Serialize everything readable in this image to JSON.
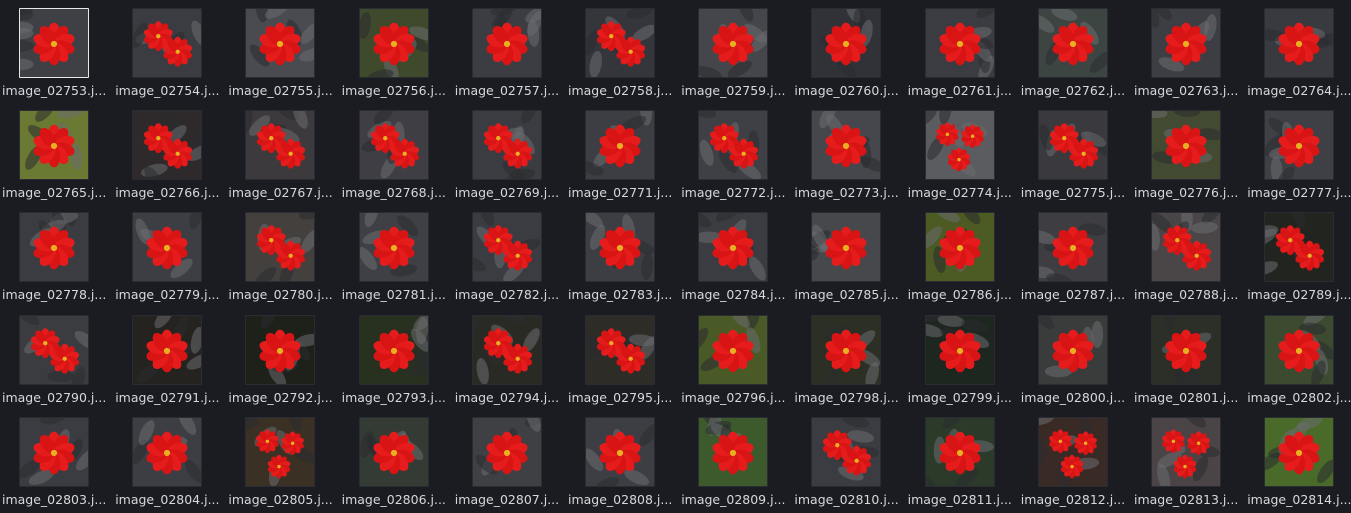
{
  "window": {
    "background": "#1a1c22",
    "selection_border": "#e8e8e8"
  },
  "files": [
    {
      "name": "image_02753.j...",
      "bg": "#3e4046",
      "flowers": 1,
      "selected": true
    },
    {
      "name": "image_02754.j...",
      "bg": "#3a3c42",
      "flowers": 2,
      "selected": false
    },
    {
      "name": "image_02755.j...",
      "bg": "#4a4b50",
      "flowers": 1,
      "selected": false
    },
    {
      "name": "image_02756.j...",
      "bg": "#3f4a2c",
      "flowers": 1,
      "selected": false
    },
    {
      "name": "image_02757.j...",
      "bg": "#3b3d43",
      "flowers": 1,
      "selected": false
    },
    {
      "name": "image_02758.j...",
      "bg": "#34363c",
      "flowers": 2,
      "selected": false
    },
    {
      "name": "image_02759.j...",
      "bg": "#44464b",
      "flowers": 1,
      "selected": false
    },
    {
      "name": "image_02760.j...",
      "bg": "#303238",
      "flowers": 1,
      "selected": false
    },
    {
      "name": "image_02761.j...",
      "bg": "#3a3c42",
      "flowers": 1,
      "selected": false
    },
    {
      "name": "image_02762.j...",
      "bg": "#3d4543",
      "flowers": 1,
      "selected": false
    },
    {
      "name": "image_02763.j...",
      "bg": "#3c3e44",
      "flowers": 1,
      "selected": false
    },
    {
      "name": "image_02764.j...",
      "bg": "#383a40",
      "flowers": 1,
      "selected": false
    },
    {
      "name": "image_02765.j...",
      "bg": "#6b7a32",
      "flowers": 1,
      "selected": false
    },
    {
      "name": "image_02766.j...",
      "bg": "#2e2a2c",
      "flowers": 2,
      "selected": false
    },
    {
      "name": "image_02767.j...",
      "bg": "#3c3a3c",
      "flowers": 2,
      "selected": false
    },
    {
      "name": "image_02768.j...",
      "bg": "#3e3e44",
      "flowers": 2,
      "selected": false
    },
    {
      "name": "image_02769.j...",
      "bg": "#3a3c42",
      "flowers": 2,
      "selected": false
    },
    {
      "name": "image_02771.j...",
      "bg": "#3c3e44",
      "flowers": 1,
      "selected": false
    },
    {
      "name": "image_02772.j...",
      "bg": "#3e4046",
      "flowers": 2,
      "selected": false
    },
    {
      "name": "image_02773.j...",
      "bg": "#45474c",
      "flowers": 1,
      "selected": false
    },
    {
      "name": "image_02774.j...",
      "bg": "#5a5c60",
      "flowers": 3,
      "selected": false
    },
    {
      "name": "image_02775.j...",
      "bg": "#3a3a3e",
      "flowers": 2,
      "selected": false
    },
    {
      "name": "image_02776.j...",
      "bg": "#434a32",
      "flowers": 1,
      "selected": false
    },
    {
      "name": "image_02777.j...",
      "bg": "#3e4046",
      "flowers": 1,
      "selected": false
    },
    {
      "name": "image_02778.j...",
      "bg": "#3a3c42",
      "flowers": 1,
      "selected": false
    },
    {
      "name": "image_02779.j...",
      "bg": "#3c3e44",
      "flowers": 1,
      "selected": false
    },
    {
      "name": "image_02780.j...",
      "bg": "#44403e",
      "flowers": 2,
      "selected": false
    },
    {
      "name": "image_02781.j...",
      "bg": "#3e4046",
      "flowers": 1,
      "selected": false
    },
    {
      "name": "image_02782.j...",
      "bg": "#3a3c42",
      "flowers": 2,
      "selected": false
    },
    {
      "name": "image_02783.j...",
      "bg": "#3c3e44",
      "flowers": 1,
      "selected": false
    },
    {
      "name": "image_02784.j...",
      "bg": "#3a3c42",
      "flowers": 1,
      "selected": false
    },
    {
      "name": "image_02785.j...",
      "bg": "#46484c",
      "flowers": 1,
      "selected": false
    },
    {
      "name": "image_02786.j...",
      "bg": "#4c5a24",
      "flowers": 1,
      "selected": false
    },
    {
      "name": "image_02787.j...",
      "bg": "#3e3e42",
      "flowers": 1,
      "selected": false
    },
    {
      "name": "image_02788.j...",
      "bg": "#4a4648",
      "flowers": 2,
      "selected": false
    },
    {
      "name": "image_02789.j...",
      "bg": "#22241f",
      "flowers": 2,
      "selected": false
    },
    {
      "name": "image_02790.j...",
      "bg": "#3a3c40",
      "flowers": 2,
      "selected": false
    },
    {
      "name": "image_02791.j...",
      "bg": "#25231f",
      "flowers": 1,
      "selected": false
    },
    {
      "name": "image_02792.j...",
      "bg": "#1e211a",
      "flowers": 1,
      "selected": false
    },
    {
      "name": "image_02793.j...",
      "bg": "#28301f",
      "flowers": 1,
      "selected": false
    },
    {
      "name": "image_02794.j...",
      "bg": "#2a2a24",
      "flowers": 2,
      "selected": false
    },
    {
      "name": "image_02795.j...",
      "bg": "#2e2c26",
      "flowers": 2,
      "selected": false
    },
    {
      "name": "image_02796.j...",
      "bg": "#4a5a26",
      "flowers": 1,
      "selected": false
    },
    {
      "name": "image_02798.j...",
      "bg": "#2c3024",
      "flowers": 1,
      "selected": false
    },
    {
      "name": "image_02799.j...",
      "bg": "#1e2620",
      "flowers": 1,
      "selected": false
    },
    {
      "name": "image_02800.j...",
      "bg": "#3a3c3c",
      "flowers": 1,
      "selected": false
    },
    {
      "name": "image_02801.j...",
      "bg": "#2c2e28",
      "flowers": 1,
      "selected": false
    },
    {
      "name": "image_02802.j...",
      "bg": "#3c4a30",
      "flowers": 1,
      "selected": false
    },
    {
      "name": "image_02803.j...",
      "bg": "#3a3c42",
      "flowers": 1,
      "selected": false
    },
    {
      "name": "image_02804.j...",
      "bg": "#3c3e44",
      "flowers": 1,
      "selected": false
    },
    {
      "name": "image_02805.j...",
      "bg": "#3a3024",
      "flowers": 3,
      "selected": false
    },
    {
      "name": "image_02806.j...",
      "bg": "#343a34",
      "flowers": 1,
      "selected": false
    },
    {
      "name": "image_02807.j...",
      "bg": "#3e4044",
      "flowers": 1,
      "selected": false
    },
    {
      "name": "image_02808.j...",
      "bg": "#3c3e44",
      "flowers": 1,
      "selected": false
    },
    {
      "name": "image_02809.j...",
      "bg": "#3c5a2c",
      "flowers": 1,
      "selected": false
    },
    {
      "name": "image_02810.j...",
      "bg": "#3a3c42",
      "flowers": 2,
      "selected": false
    },
    {
      "name": "image_02811.j...",
      "bg": "#2c3a2a",
      "flowers": 1,
      "selected": false
    },
    {
      "name": "image_02812.j...",
      "bg": "#3a2a26",
      "flowers": 3,
      "selected": false
    },
    {
      "name": "image_02813.j...",
      "bg": "#4a4446",
      "flowers": 3,
      "selected": false
    },
    {
      "name": "image_02814.j...",
      "bg": "#4a6a2a",
      "flowers": 1,
      "selected": false
    }
  ]
}
